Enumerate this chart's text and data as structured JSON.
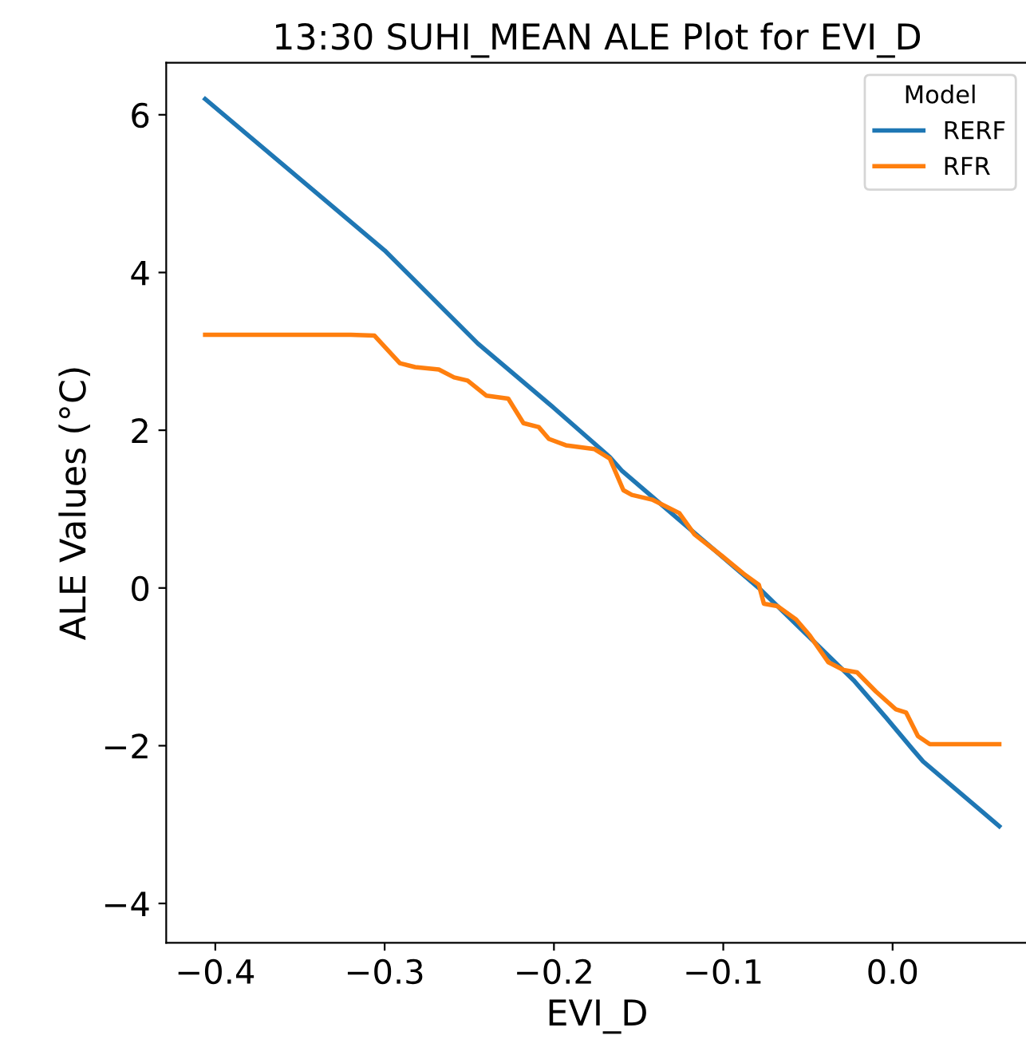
{
  "chart_data": {
    "type": "line",
    "title": "13:30 SUHI_MEAN ALE Plot for EVI_D",
    "xlabel": "EVI_D",
    "ylabel": "ALE Values (°C)",
    "legend_title": "Model",
    "legend": "top right",
    "grid": false,
    "xlim": [
      -0.429,
      0.08
    ],
    "xticks": [
      {
        "value": -0.4,
        "label": "−0.4"
      },
      {
        "value": -0.3,
        "label": "−0.3"
      },
      {
        "value": -0.2,
        "label": "−0.2"
      },
      {
        "value": -0.1,
        "label": "−0.1"
      },
      {
        "value": 0.0,
        "label": "0.0"
      }
    ],
    "ylim": [
      -4.5,
      6.66
    ],
    "yticks": [
      {
        "value": -4,
        "label": "−4"
      },
      {
        "value": -2,
        "label": "−2"
      },
      0,
      2,
      4,
      6
    ],
    "series": [
      {
        "name": "RERF",
        "color": "#1f77b4",
        "x": [
          -0.406,
          -0.3,
          -0.245,
          -0.201,
          -0.167,
          -0.16,
          -0.079,
          -0.023,
          -0.004,
          0.012,
          0.018,
          0.063
        ],
        "values": [
          6.2,
          4.28,
          3.1,
          2.3,
          1.66,
          1.49,
          0.0,
          -1.17,
          -1.64,
          -2.05,
          -2.2,
          -3.02
        ]
      },
      {
        "name": "RFR",
        "color": "#ff7f0e",
        "x": [
          -0.406,
          -0.32,
          -0.306,
          -0.291,
          -0.282,
          -0.268,
          -0.259,
          -0.251,
          -0.24,
          -0.227,
          -0.218,
          -0.209,
          -0.203,
          -0.193,
          -0.176,
          -0.167,
          -0.159,
          -0.154,
          -0.142,
          -0.126,
          -0.117,
          -0.101,
          -0.088,
          -0.079,
          -0.076,
          -0.068,
          -0.057,
          -0.049,
          -0.038,
          -0.029,
          -0.021,
          -0.01,
          0.002,
          0.008,
          0.015,
          0.022,
          0.063
        ],
        "values": [
          3.21,
          3.21,
          3.2,
          2.85,
          2.8,
          2.77,
          2.67,
          2.63,
          2.44,
          2.4,
          2.09,
          2.04,
          1.89,
          1.81,
          1.76,
          1.64,
          1.24,
          1.18,
          1.12,
          0.95,
          0.68,
          0.41,
          0.18,
          0.04,
          -0.2,
          -0.23,
          -0.4,
          -0.6,
          -0.94,
          -1.04,
          -1.07,
          -1.31,
          -1.54,
          -1.58,
          -1.88,
          -1.98,
          -1.98
        ]
      }
    ]
  }
}
